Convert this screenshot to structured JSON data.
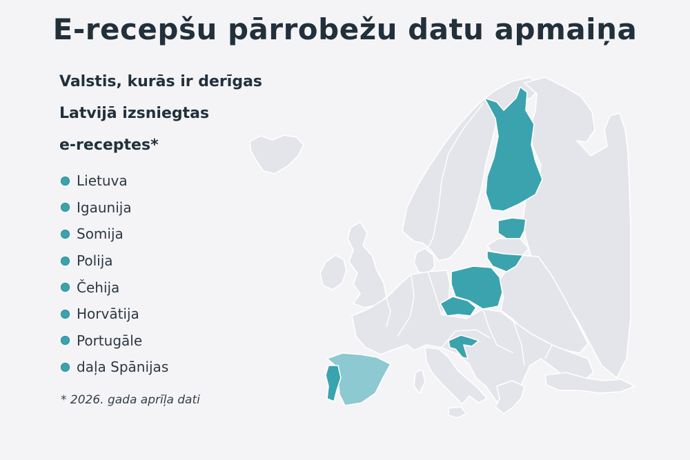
{
  "title": "E-recepšu pārrobežu datu apmaiņa",
  "subtitle_lines": [
    "Valstis, kurās ir derīgas",
    "Latvijā izsniegtas",
    "e-receptes*"
  ],
  "countries": [
    {
      "label": "Lietuva",
      "status": "full"
    },
    {
      "label": "Igaunija",
      "status": "full"
    },
    {
      "label": "Somija",
      "status": "full"
    },
    {
      "label": "Polija",
      "status": "full"
    },
    {
      "label": "Čehija",
      "status": "full"
    },
    {
      "label": "Horvātija",
      "status": "full"
    },
    {
      "label": "Portugāle",
      "status": "full"
    },
    {
      "label": "daļa Spānijas",
      "status": "partial"
    }
  ],
  "footnote": "* 2026. gada aprīļa dati",
  "colors": {
    "full": "#3aa3ae",
    "partial": "#8cc9d0",
    "other_land": "#e4e5ea",
    "background": "#f4f4f6"
  }
}
